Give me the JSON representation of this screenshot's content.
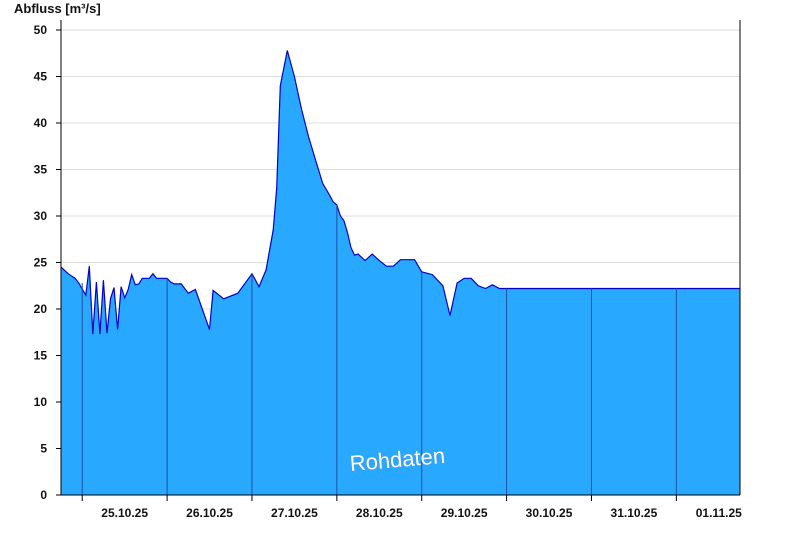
{
  "chart_data": {
    "type": "area",
    "ylabel": "Abfluss [m³/s]",
    "watermark": "Rohdaten",
    "ylim": [
      0,
      50
    ],
    "y_ticks": [
      0,
      5,
      10,
      15,
      20,
      25,
      30,
      35,
      40,
      45,
      50
    ],
    "x_start": "24.10.25 18:00",
    "x_end": "01.11.25 18:00",
    "x_tick_labels": [
      "25.10.25",
      "26.10.25",
      "27.10.25",
      "28.10.25",
      "29.10.25",
      "30.10.25",
      "31.10.25",
      "01.11.25"
    ],
    "grid": true,
    "colors": {
      "fill": "#29a8ff",
      "line": "#0000cc",
      "midnight_lines": "#1f4fa0",
      "grid": "#dddddd"
    },
    "series": [
      {
        "x": [
          "24.10.25 18:00",
          "24.10.25 20:00",
          "24.10.25 22:00",
          "24.10.25 23:00",
          "25.10.25 01:00",
          "25.10.25 02:00",
          "25.10.25 03:00",
          "25.10.25 04:00",
          "25.10.25 05:00",
          "25.10.25 06:00",
          "25.10.25 07:00",
          "25.10.25 08:00",
          "25.10.25 09:00",
          "25.10.25 10:00",
          "25.10.25 11:00",
          "25.10.25 12:00",
          "25.10.25 13:00",
          "25.10.25 14:00",
          "25.10.25 15:00",
          "25.10.25 16:00",
          "25.10.25 17:00",
          "25.10.25 18:00",
          "25.10.25 19:00",
          "25.10.25 20:00",
          "25.10.25 21:00",
          "25.10.25 22:00",
          "25.10.25 23:00",
          "26.10.25 00:00",
          "26.10.25 01:00",
          "26.10.25 02:00",
          "26.10.25 03:00",
          "26.10.25 04:00",
          "26.10.25 06:00",
          "26.10.25 08:00",
          "26.10.25 12:00",
          "26.10.25 13:00",
          "26.10.25 16:00",
          "26.10.25 20:00",
          "27.10.25 00:00",
          "27.10.25 02:00",
          "27.10.25 04:00",
          "27.10.25 05:00",
          "27.10.25 06:00",
          "27.10.25 07:00",
          "27.10.25 08:00",
          "27.10.25 10:00",
          "27.10.25 12:00",
          "27.10.25 14:00",
          "27.10.25 16:00",
          "27.10.25 18:00",
          "27.10.25 20:00",
          "27.10.25 22:00",
          "27.10.25 23:00",
          "28.10.25 00:00",
          "28.10.25 01:00",
          "28.10.25 02:00",
          "28.10.25 03:00",
          "28.10.25 04:00",
          "28.10.25 05:00",
          "28.10.25 06:00",
          "28.10.25 08:00",
          "28.10.25 10:00",
          "28.10.25 12:00",
          "28.10.25 14:00",
          "28.10.25 16:00",
          "28.10.25 18:00",
          "28.10.25 20:00",
          "28.10.25 22:00",
          "29.10.25 00:00",
          "29.10.25 03:00",
          "29.10.25 06:00",
          "29.10.25 08:00",
          "29.10.25 10:00",
          "29.10.25 12:00",
          "29.10.25 14:00",
          "29.10.25 16:00",
          "29.10.25 18:00",
          "29.10.25 20:00",
          "29.10.25 22:00",
          "30.10.25 00:00",
          "30.10.25 04:00",
          "30.10.25 08:00",
          "30.10.25 12:00",
          "30.10.25 18:00",
          "30.10.25 22:00",
          "31.10.25 00:00",
          "31.10.25 04:00",
          "31.10.25 06:00",
          "31.10.25 09:00",
          "31.10.25 12:00",
          "31.10.25 15:00",
          "31.10.25 18:00",
          "31.10.25 20:00",
          "31.10.25 21:00",
          "31.10.25 22:00",
          "31.10.25 23:00",
          "01.11.25 00:00",
          "01.11.25 01:00",
          "01.11.25 04:00",
          "01.11.25 07:00",
          "01.11.25 10:00",
          "01.11.25 12:00",
          "01.11.25 14:00",
          "01.11.25 18:00"
        ],
        "y": [
          24.5,
          23.8,
          23.3,
          22.8,
          21.5,
          24.6,
          17.3,
          22.9,
          17.3,
          23.1,
          17.4,
          21.1,
          22.3,
          17.8,
          22.4,
          21.2,
          22.1,
          23.7,
          22.6,
          22.7,
          23.3,
          23.3,
          23.3,
          23.8,
          23.3,
          23.3,
          23.3,
          23.3,
          22.9,
          22.7,
          22.7,
          22.7,
          21.7,
          22.1,
          17.8,
          22.0,
          21.1,
          21.7,
          23.8,
          22.4,
          24.2,
          26.4,
          28.5,
          33.0,
          44.0,
          47.8,
          45.0,
          41.5,
          38.5,
          36.0,
          33.5,
          32.2,
          31.5,
          31.2,
          30.0,
          29.5,
          28.2,
          26.6,
          25.8,
          25.9,
          25.2,
          25.9,
          25.2,
          24.6,
          24.6,
          25.3,
          25.3,
          25.3,
          24.0,
          23.7,
          22.5,
          19.3,
          22.8,
          23.3,
          23.3,
          22.5,
          22.2,
          22.6,
          22.2,
          22.2,
          22.2,
          22.2,
          22.2,
          22.2,
          22.2,
          22.2,
          22.2,
          22.2,
          22.2,
          22.2,
          22.2,
          22.2,
          22.2,
          22.2,
          22.2,
          22.2,
          22.2,
          22.2,
          22.2,
          22.2,
          22.2,
          22.2,
          22.2,
          22.2
        ]
      }
    ]
  }
}
